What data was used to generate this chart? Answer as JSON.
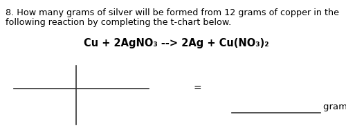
{
  "background_color": "#ffffff",
  "question_line1": "8. How many grams of silver will be formed from 12 grams of copper in the",
  "question_line2": "following reaction by completing the t-chart below.",
  "equation_text": "Cu + 2AgNO₃ --> 2Ag + Cu(NO₃)₂",
  "equals_text": "=",
  "answer_label": "grams Ag",
  "question_fontsize": 9.2,
  "equation_fontsize": 10.5,
  "equals_fontsize": 10,
  "answer_fontsize": 9.5,
  "text_color": "#000000",
  "line_color": "#333333",
  "line_width": 1.2
}
